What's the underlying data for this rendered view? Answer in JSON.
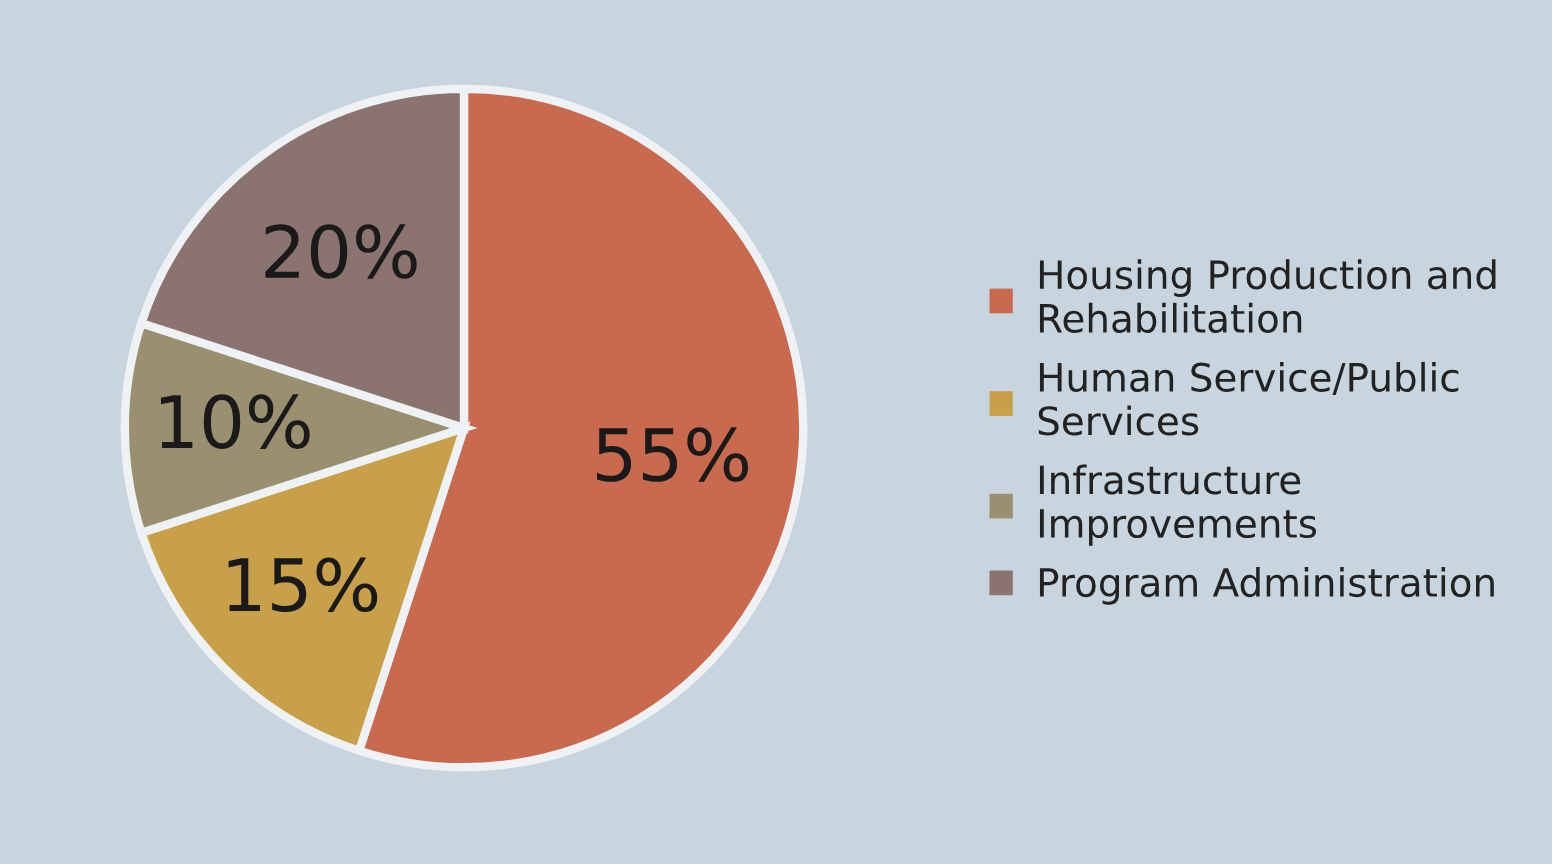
{
  "chart_data": {
    "type": "pie",
    "categories": [
      "Housing Production and\nRehabilitation",
      "Human Service/Public\nServices",
      "Infrastructure\nImprovements",
      "Program Administration"
    ],
    "values": [
      55,
      15,
      10,
      20
    ],
    "colors": [
      "#c96a4f",
      "#c9a04a",
      "#9a9070",
      "#8b7370"
    ],
    "value_labels": [
      "55%",
      "15%",
      "10%",
      "20%"
    ],
    "legend": "right"
  }
}
